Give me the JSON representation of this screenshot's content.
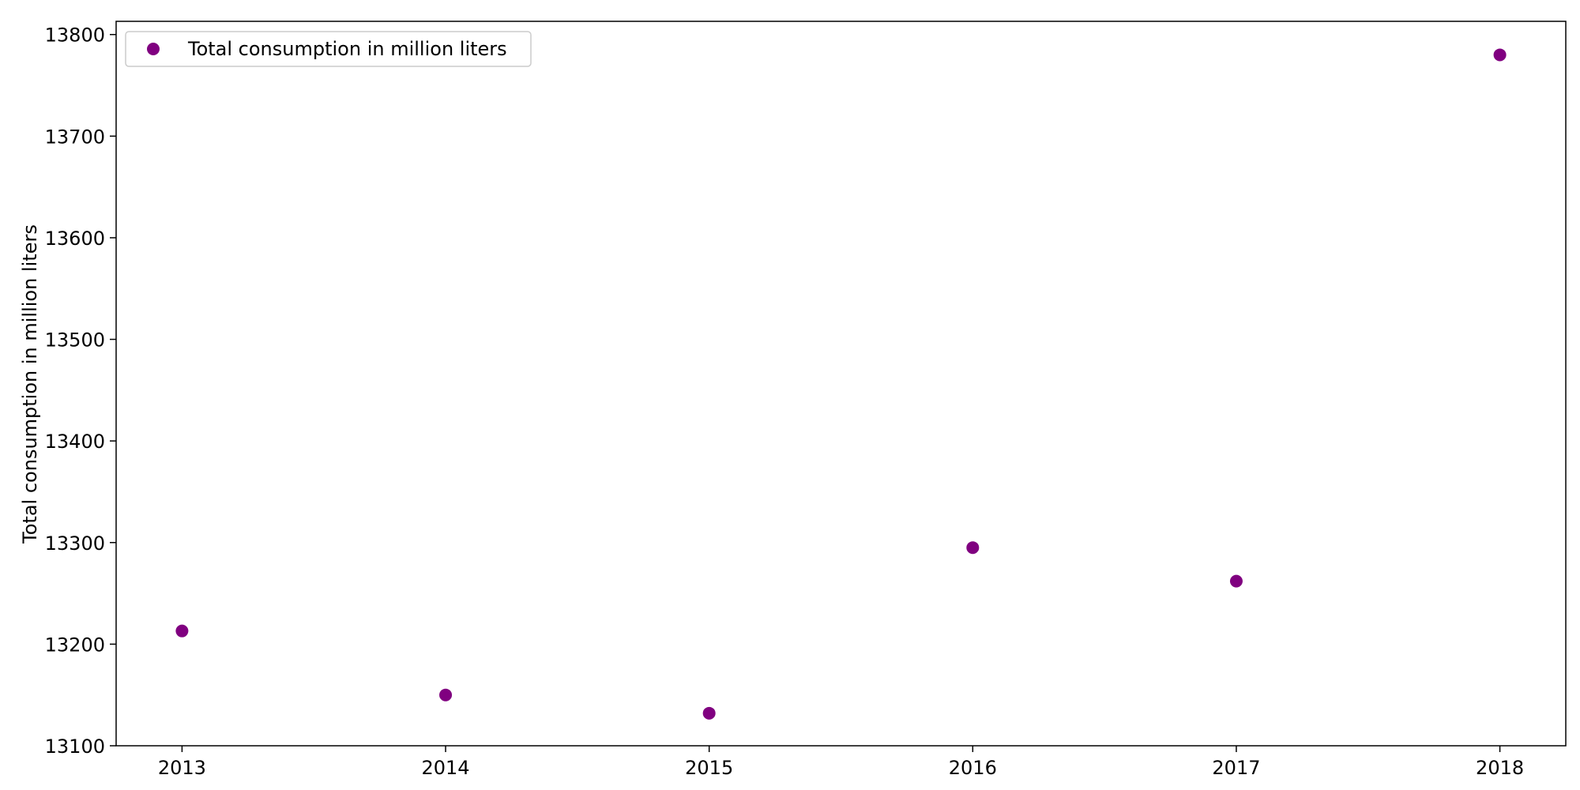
{
  "chart_data": {
    "type": "scatter",
    "title": "",
    "xlabel": "",
    "ylabel": "Total consumption in million liters",
    "x": [
      2013,
      2014,
      2015,
      2016,
      2017,
      2018
    ],
    "series": [
      {
        "name": "Total consumption in million liters",
        "color": "#800080",
        "values": [
          13213,
          13150,
          13132,
          13295,
          13262,
          13780
        ]
      }
    ],
    "xlim": [
      2012.75,
      2018.25
    ],
    "ylim": [
      13100,
      13813
    ],
    "xticks": [
      "2013",
      "2014",
      "2015",
      "2016",
      "2017",
      "2018"
    ],
    "yticks": [
      "13100",
      "13200",
      "13300",
      "13400",
      "13500",
      "13600",
      "13700",
      "13800"
    ],
    "legend": "upper-left",
    "grid": false
  }
}
